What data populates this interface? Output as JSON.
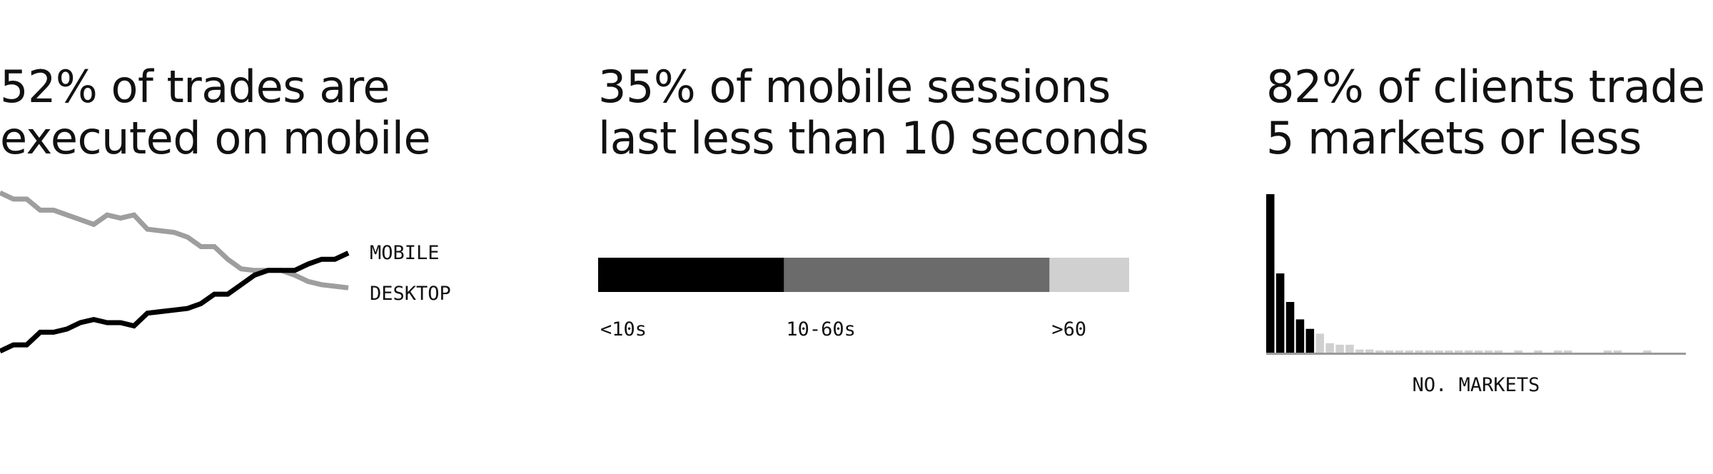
{
  "panels": [
    {
      "headline_line1": "52% of trades are",
      "headline_line2": "executed on mobile"
    },
    {
      "headline_line1": "35% of mobile sessions",
      "headline_line2": "last less than 10 seconds"
    },
    {
      "headline_line1": "82% of clients trade",
      "headline_line2": "5 markets or less"
    }
  ],
  "colors": {
    "black": "#000000",
    "dark_gray": "#6b6b6b",
    "light_gray": "#d0d0d0",
    "line_gray": "#9e9e9e",
    "axis": "#9a9a9a"
  },
  "chart_data": [
    {
      "type": "line",
      "series": [
        {
          "name": "MOBILE",
          "color": "#000000",
          "values": [
            0.0,
            0.04,
            0.04,
            0.12,
            0.12,
            0.14,
            0.18,
            0.2,
            0.18,
            0.18,
            0.16,
            0.24,
            0.25,
            0.26,
            0.27,
            0.3,
            0.36,
            0.36,
            0.42,
            0.48,
            0.51,
            0.51,
            0.51,
            0.55,
            0.58,
            0.58,
            0.62
          ]
        },
        {
          "name": "DESKTOP",
          "color": "#9e9e9e",
          "values": [
            1.0,
            0.96,
            0.96,
            0.89,
            0.89,
            0.86,
            0.83,
            0.8,
            0.86,
            0.84,
            0.86,
            0.77,
            0.76,
            0.75,
            0.72,
            0.66,
            0.66,
            0.58,
            0.52,
            0.51,
            0.51,
            0.51,
            0.48,
            0.44,
            0.42,
            0.41,
            0.4
          ]
        }
      ],
      "ylim": [
        0,
        1
      ]
    },
    {
      "type": "bar",
      "stacked": true,
      "orientation": "horizontal",
      "segments": [
        {
          "label": "<10s",
          "value": 35,
          "color": "#000000"
        },
        {
          "label": "10-60s",
          "value": 50,
          "color": "#6b6b6b"
        },
        {
          "label": ">60",
          "value": 15,
          "color": "#d0d0d0"
        }
      ]
    },
    {
      "type": "bar",
      "xlabel": "NO. MARKETS",
      "ylim": [
        0,
        100
      ],
      "values": [
        100,
        50,
        32,
        21,
        15,
        12,
        6,
        5,
        5,
        2,
        2,
        1,
        1,
        1,
        1,
        1,
        1,
        1,
        1,
        1,
        1,
        1,
        1,
        1,
        0,
        1,
        0,
        1,
        0,
        1,
        1,
        0,
        0,
        0,
        1,
        1,
        0,
        0,
        1,
        0
      ],
      "highlight_first": 5,
      "highlight_color": "#000000",
      "rest_color": "#d0d0d0"
    }
  ]
}
